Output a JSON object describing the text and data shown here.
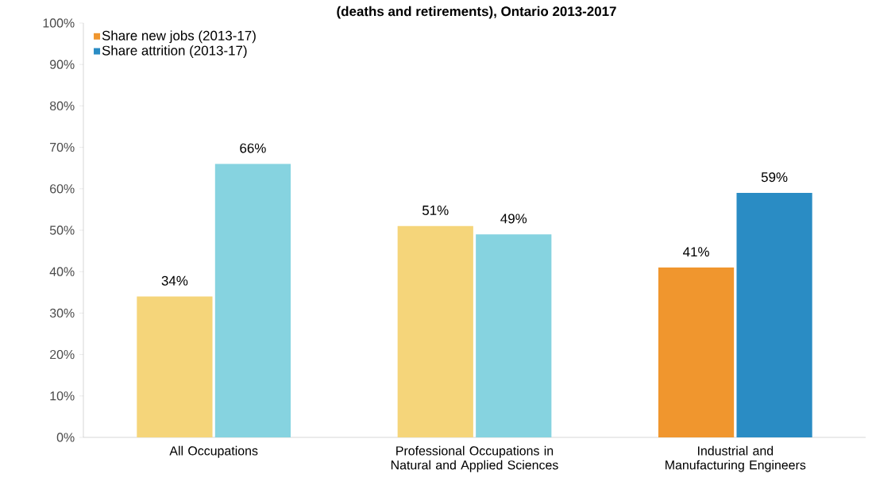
{
  "chart_data": {
    "type": "bar",
    "title": "(deaths and retirements), Ontario 2013-2017",
    "categories": [
      "All Occupations",
      "Professional Occupations in Natural and Applied Sciences",
      "Industrial and Manufacturing Engineers"
    ],
    "series": [
      {
        "name": "Share new jobs (2013-17)",
        "color": "#f0962e",
        "colors": [
          "#f5d57a",
          "#f5d57a",
          "#f0962e"
        ],
        "values": [
          34,
          51,
          41
        ],
        "value_labels": [
          "34%",
          "51%",
          "41%"
        ]
      },
      {
        "name": "Share attrition (2013-17)",
        "color": "#2a8cc4",
        "colors": [
          "#86d3e0",
          "#86d3e0",
          "#2a8cc4"
        ],
        "values": [
          66,
          49,
          59
        ],
        "value_labels": [
          "66%",
          "49%",
          "59%"
        ]
      }
    ],
    "ylim": [
      0,
      100
    ],
    "yticks": [
      {
        "value": 0,
        "label": "0%"
      },
      {
        "value": 10,
        "label": "10%"
      },
      {
        "value": 20,
        "label": "20%"
      },
      {
        "value": 30,
        "label": "30%"
      },
      {
        "value": 40,
        "label": "40%"
      },
      {
        "value": 50,
        "label": "50%"
      },
      {
        "value": 60,
        "label": "60%"
      },
      {
        "value": 70,
        "label": "70%"
      },
      {
        "value": 80,
        "label": "80%"
      },
      {
        "value": 90,
        "label": "90%"
      },
      {
        "value": 100,
        "label": "100%"
      }
    ],
    "legend": "top left",
    "grid": false
  }
}
